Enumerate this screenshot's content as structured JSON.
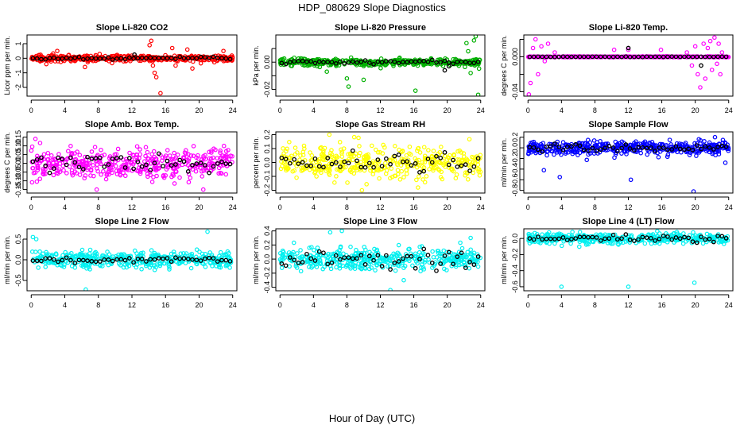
{
  "title": "HDP_080629  Slope Diagnostics",
  "xlabel": "Hour of Day (UTC)",
  "chart_data": [
    {
      "type": "scatter",
      "title": "Slope Li-820 CO2",
      "ylabel": "Licor ppm per min.",
      "color": "#ff0000",
      "ylim": [
        -2.6,
        1.6
      ],
      "yticks": [
        -2,
        -1,
        0,
        1
      ],
      "ytick_labels": [
        "-2",
        "-1",
        "0",
        "1"
      ],
      "xlim": [
        -0.5,
        24.5
      ],
      "xticks": [
        0,
        4,
        8,
        12,
        16,
        20,
        24
      ],
      "scatter": {
        "spread": 0.22,
        "outliers": [
          [
            1.8,
            -0.4
          ],
          [
            3.1,
            0.5
          ],
          [
            6.4,
            -0.6
          ],
          [
            14.1,
            0.9
          ],
          [
            14.3,
            1.2
          ],
          [
            14.5,
            -0.5
          ],
          [
            14.7,
            -1.0
          ],
          [
            14.9,
            -1.3
          ],
          [
            15.4,
            -2.4
          ],
          [
            16.8,
            0.7
          ],
          [
            17.2,
            -0.5
          ],
          [
            18.6,
            0.6
          ],
          [
            19.2,
            -0.7
          ],
          [
            22.9,
            0.5
          ]
        ]
      },
      "black": {
        "spread": 0.1,
        "outliers": [
          [
            12.3,
            0.25
          ]
        ]
      }
    },
    {
      "type": "scatter",
      "title": "Slope Li-820 Pressure",
      "ylabel": "kPa per min.",
      "color": "#00b000",
      "ylim": [
        -0.025,
        0.02
      ],
      "yticks": [
        -0.02,
        -0.01,
        0,
        0.01
      ],
      "ytick_labels": [
        "-0.02",
        "",
        "0.00",
        ""
      ],
      "xlim": [
        -0.5,
        24.5
      ],
      "xticks": [
        0,
        4,
        8,
        12,
        16,
        20,
        24
      ],
      "scatter": {
        "spread": 0.003,
        "outliers": [
          [
            5.6,
            -0.007
          ],
          [
            8.0,
            -0.012
          ],
          [
            8.2,
            -0.018
          ],
          [
            10.0,
            -0.013
          ],
          [
            16.2,
            -0.021
          ],
          [
            22.3,
            0.014
          ],
          [
            22.5,
            0.008
          ],
          [
            23.2,
            0.016
          ],
          [
            23.4,
            0.019
          ],
          [
            23.7,
            -0.024
          ],
          [
            22.8,
            -0.008
          ]
        ]
      },
      "black": {
        "spread": 0.0015,
        "outliers": [
          [
            19.7,
            -0.006
          ],
          [
            20.2,
            -0.003
          ]
        ]
      }
    },
    {
      "type": "scatter",
      "title": "Slope Li-820 Temp.",
      "ylabel": "degrees C per min.",
      "color": "#ff00ff",
      "ylim": [
        -0.045,
        0.025
      ],
      "yticks": [
        -0.04,
        -0.02,
        0,
        0.02
      ],
      "ytick_labels": [
        "-0.04",
        "",
        "0.000",
        ""
      ],
      "xlim": [
        -0.5,
        24.5
      ],
      "xticks": [
        0,
        4,
        8,
        12,
        16,
        20,
        24
      ],
      "scatter": {
        "spread": 0.0005,
        "outliers": [
          [
            0.1,
            -0.043
          ],
          [
            0.3,
            -0.03
          ],
          [
            0.6,
            0.01
          ],
          [
            0.9,
            0.02
          ],
          [
            1.2,
            -0.02
          ],
          [
            1.6,
            0.012
          ],
          [
            2.0,
            -0.005
          ],
          [
            2.4,
            0.015
          ],
          [
            3.2,
            0.005
          ],
          [
            10.3,
            0.008
          ],
          [
            12.0,
            0.008
          ],
          [
            15.9,
            0.008
          ],
          [
            19.0,
            0.005
          ],
          [
            19.6,
            -0.01
          ],
          [
            20.0,
            0.012
          ],
          [
            20.3,
            -0.02
          ],
          [
            20.6,
            -0.035
          ],
          [
            21.0,
            0.015
          ],
          [
            21.2,
            -0.025
          ],
          [
            21.5,
            0.01
          ],
          [
            21.8,
            0.018
          ],
          [
            22.0,
            -0.015
          ],
          [
            22.3,
            0.022
          ],
          [
            22.6,
            -0.008
          ],
          [
            22.8,
            0.015
          ],
          [
            23.0,
            -0.02
          ],
          [
            23.2,
            0.005
          ]
        ]
      },
      "black": {
        "spread": 0.0003,
        "outliers": [
          [
            12.0,
            0.01
          ],
          [
            20.7,
            -0.01
          ]
        ]
      }
    },
    {
      "type": "scatter",
      "title": "Slope Amb. Box Temp.",
      "ylabel": "degrees C per min.",
      "color": "#ff00ff",
      "ylim": [
        -0.17,
        0.18
      ],
      "yticks": [
        -0.15,
        -0.1,
        -0.05,
        0,
        0.05,
        0.1,
        0.15
      ],
      "ytick_labels": [
        "-0.15",
        "-0.10",
        "-0.05",
        "0.00",
        "0.05",
        "0.10",
        "0.15"
      ],
      "xlim": [
        -0.5,
        24.5
      ],
      "xticks": [
        0,
        4,
        8,
        12,
        16,
        20,
        24
      ],
      "scatter": {
        "spread": 0.1,
        "outliers": [
          [
            0.5,
            0.14
          ],
          [
            7.8,
            -0.15
          ],
          [
            20.5,
            -0.15
          ]
        ]
      },
      "black": {
        "spread": 0.06,
        "outliers": []
      }
    },
    {
      "type": "scatter",
      "title": "Slope Gas Stream RH",
      "ylabel": "percent per min.",
      "color": "#ffff00",
      "ylim": [
        -0.22,
        0.22
      ],
      "yticks": [
        -0.2,
        -0.1,
        0,
        0.1,
        0.2
      ],
      "ytick_labels": [
        "-0.2",
        "-0.1",
        "0.0",
        "0.1",
        "0.2"
      ],
      "xlim": [
        -0.5,
        24.5
      ],
      "xticks": [
        0,
        4,
        8,
        12,
        16,
        20,
        24
      ],
      "scatter": {
        "spread": 0.12,
        "outliers": [
          [
            5.9,
            0.2
          ],
          [
            9.8,
            -0.2
          ]
        ]
      },
      "black": {
        "spread": 0.07,
        "outliers": []
      }
    },
    {
      "type": "scatter",
      "title": "Slope Sample Flow",
      "ylabel": "ml/min per min.",
      "color": "#0000ff",
      "ylim": [
        -0.85,
        0.3
      ],
      "yticks": [
        -0.8,
        -0.6,
        -0.4,
        -0.2,
        0,
        0.2
      ],
      "ytick_labels": [
        "-0.8",
        "-0.6",
        "-0.4",
        "-0.2",
        "0.0",
        "0.2"
      ],
      "xlim": [
        -0.5,
        24.5
      ],
      "xticks": [
        0,
        4,
        8,
        12,
        16,
        20,
        24
      ],
      "scatter": {
        "spread": 0.14,
        "outliers": [
          [
            1.9,
            -0.42
          ],
          [
            3.8,
            -0.55
          ],
          [
            12.3,
            -0.6
          ],
          [
            19.8,
            -0.82
          ],
          [
            23.6,
            -0.28
          ]
        ]
      },
      "black": {
        "spread": 0.07,
        "outliers": []
      }
    },
    {
      "type": "scatter",
      "title": "Slope Line 2 Flow",
      "ylabel": "ml/min per min.",
      "color": "#00f0f0",
      "ylim": [
        -0.75,
        0.75
      ],
      "yticks": [
        -0.5,
        0,
        0.5
      ],
      "ytick_labels": [
        "-0.5",
        "0.0",
        "0.5"
      ],
      "xlim": [
        -0.5,
        24.5
      ],
      "xticks": [
        0,
        4,
        8,
        12,
        16,
        20,
        24
      ],
      "scatter": {
        "spread": 0.22,
        "outliers": [
          [
            0.2,
            0.55
          ],
          [
            0.6,
            0.5
          ],
          [
            6.5,
            -0.72
          ],
          [
            21.0,
            0.68
          ],
          [
            23.4,
            0.2
          ]
        ]
      },
      "black": {
        "spread": 0.07,
        "outliers": []
      }
    },
    {
      "type": "scatter",
      "title": "Slope Line 3 Flow",
      "ylabel": "ml/min per min.",
      "color": "#00f0f0",
      "ylim": [
        -0.45,
        0.43
      ],
      "yticks": [
        -0.4,
        -0.2,
        0,
        0.2,
        0.4
      ],
      "ytick_labels": [
        "-0.4",
        "-0.2",
        "0.0",
        "0.2",
        "0.4"
      ],
      "xlim": [
        -0.5,
        24.5
      ],
      "xticks": [
        0,
        4,
        8,
        12,
        16,
        20,
        24
      ],
      "scatter": {
        "spread": 0.17,
        "outliers": [
          [
            6.0,
            0.38
          ],
          [
            7.4,
            0.4
          ],
          [
            13.2,
            -0.44
          ],
          [
            14.8,
            -0.3
          ],
          [
            22.8,
            0.3
          ]
        ]
      },
      "black": {
        "spread": 0.16,
        "outliers": []
      }
    },
    {
      "type": "scatter",
      "title": "Slope Line 4 (LT) Flow",
      "ylabel": "ml/min per min.",
      "color": "#00f0f0",
      "ylim": [
        -0.65,
        0.12
      ],
      "yticks": [
        -0.6,
        -0.4,
        -0.2,
        0
      ],
      "ytick_labels": [
        "-0.6",
        "-0.4",
        "-0.2",
        "0.0"
      ],
      "xlim": [
        -0.5,
        24.5
      ],
      "xticks": [
        0,
        4,
        8,
        12,
        16,
        20,
        24
      ],
      "scatter": {
        "spread": 0.07,
        "outliers": [
          [
            4.0,
            -0.6
          ],
          [
            12.0,
            -0.6
          ],
          [
            19.9,
            -0.55
          ],
          [
            17.8,
            0.08
          ]
        ]
      },
      "black": {
        "spread": 0.04,
        "outliers": []
      }
    }
  ]
}
